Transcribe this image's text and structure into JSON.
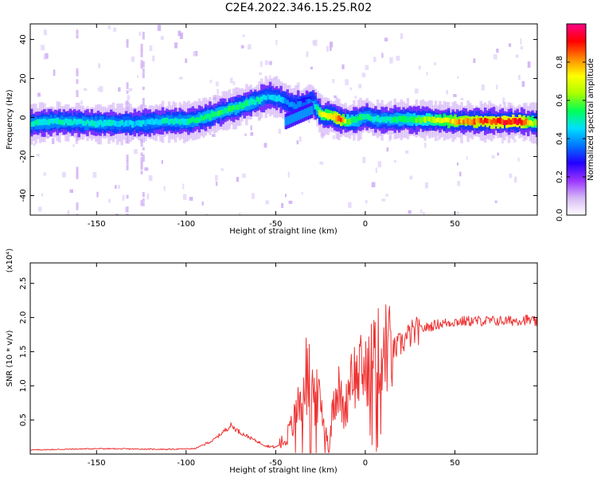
{
  "figure_title": "C2E4.2022.346.15.25.R02",
  "colors": {
    "snr_line": "#ee3333",
    "axis": "#000000"
  },
  "chart_data": [
    {
      "type": "heatmap",
      "title": "",
      "xlabel": "Height of straight line (km)",
      "ylabel": "Frequency (Hz)",
      "xlim": [
        -187,
        96
      ],
      "ylim": [
        -50,
        48
      ],
      "xticks": [
        -150,
        -100,
        -50,
        0,
        50
      ],
      "yticks": [
        -40,
        -20,
        0,
        20,
        40
      ],
      "colorbar": {
        "label": "Normalized spectral amplitude",
        "range": [
          0.0,
          1.0
        ],
        "ticks": [
          0.0,
          0.2,
          0.4,
          0.6,
          0.8
        ],
        "colormap": [
          "#ffffff",
          "#d6b8f5",
          "#9933ff",
          "#2200ff",
          "#0077ff",
          "#00e0ff",
          "#00ff55",
          "#aaff00",
          "#ffff00",
          "#ff8800",
          "#ff0000",
          "#ff0088"
        ]
      },
      "ridge": {
        "x": [
          -187,
          -170,
          -150,
          -130,
          -110,
          -100,
          -90,
          -80,
          -70,
          -60,
          -55,
          -50,
          -45,
          -40,
          -35,
          -30,
          -25,
          -20,
          -15,
          -10,
          -5,
          0,
          5,
          10,
          20,
          30,
          50,
          70,
          85,
          96
        ],
        "freq": [
          -3,
          -2,
          -3,
          -3,
          -2,
          -2,
          0,
          3,
          6,
          9,
          11,
          10,
          8,
          6,
          7,
          8,
          1,
          1,
          -1,
          -2,
          -1,
          1,
          -1,
          -1,
          -1,
          -1,
          -2,
          -2,
          -2,
          -3
        ],
        "amplitude": [
          0.5,
          0.5,
          0.5,
          0.45,
          0.5,
          0.5,
          0.55,
          0.55,
          0.55,
          0.5,
          0.45,
          0.45,
          0.4,
          0.4,
          0.35,
          0.4,
          0.7,
          0.75,
          0.9,
          0.6,
          0.55,
          0.5,
          0.5,
          0.5,
          0.55,
          0.6,
          0.8,
          0.9,
          0.95,
          0.6
        ]
      },
      "lower_branch": {
        "x": [
          -45,
          -40,
          -35,
          -30
        ],
        "freq": [
          -2,
          0,
          2,
          4
        ]
      }
    },
    {
      "type": "line",
      "title": "",
      "xlabel": "Height of straight line (km)",
      "ylabel": "SNR (10 * v/v)",
      "y_multiplier": "(x10⁴)",
      "xlim": [
        -187,
        96
      ],
      "ylim": [
        0,
        2.8
      ],
      "xticks": [
        -150,
        -100,
        -50,
        0,
        50
      ],
      "yticks": [
        0.5,
        1.0,
        1.5,
        2.0,
        2.5
      ],
      "ytick_labels": [
        "0.5",
        "1.0",
        "1.5",
        "2.0",
        "2.5"
      ],
      "series": [
        {
          "x": [
            -187,
            -150,
            -110,
            -95,
            -85,
            -75,
            -70,
            -65,
            -60,
            -55,
            -50,
            -45,
            -40,
            -37,
            -34,
            -31,
            -28,
            -25,
            -22,
            -20,
            -18,
            -15,
            -12,
            -10,
            -8,
            -5,
            -2,
            0,
            2,
            5,
            8,
            10,
            12,
            15,
            20,
            25,
            30,
            40,
            50,
            60,
            70,
            80,
            90,
            96
          ],
          "y": [
            0.06,
            0.08,
            0.07,
            0.08,
            0.2,
            0.42,
            0.32,
            0.25,
            0.18,
            0.12,
            0.1,
            0.2,
            0.45,
            0.8,
            1.2,
            1.05,
            0.85,
            0.7,
            0.35,
            0.05,
            0.85,
            0.95,
            0.6,
            0.8,
            1.3,
            1.1,
            1.25,
            1.15,
            1.3,
            1.45,
            1.5,
            1.6,
            1.55,
            1.5,
            1.62,
            1.75,
            1.82,
            1.9,
            1.94,
            1.95,
            1.95,
            1.95,
            1.97,
            1.93
          ]
        }
      ]
    }
  ]
}
